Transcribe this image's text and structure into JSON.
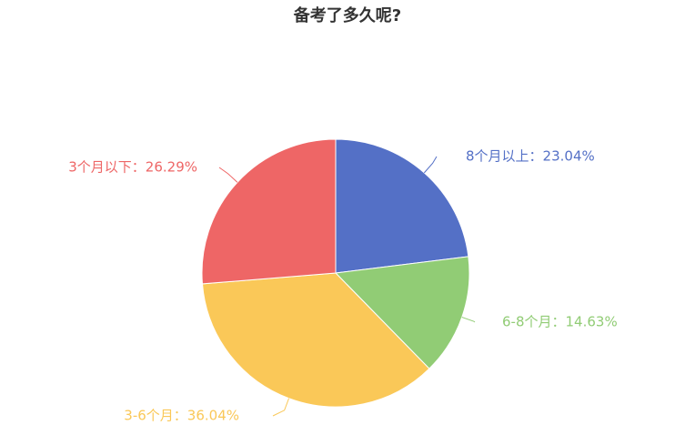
{
  "chart_data": {
    "type": "pie",
    "title": "备考了多久呢?",
    "slices": [
      {
        "label": "8个月以上",
        "value": 23.04,
        "color": "#5470c6",
        "display": "8个月以上：23.04%"
      },
      {
        "label": "6-8个月",
        "value": 14.63,
        "color": "#91cc75",
        "display": "6-8个月：14.63%"
      },
      {
        "label": "3-6个月",
        "value": 36.04,
        "color": "#fac858",
        "display": "3-6个月：36.04%"
      },
      {
        "label": "3个月以下",
        "value": 26.29,
        "color": "#ee6666",
        "display": "3个月以下：26.29%"
      }
    ],
    "legend": "none"
  }
}
